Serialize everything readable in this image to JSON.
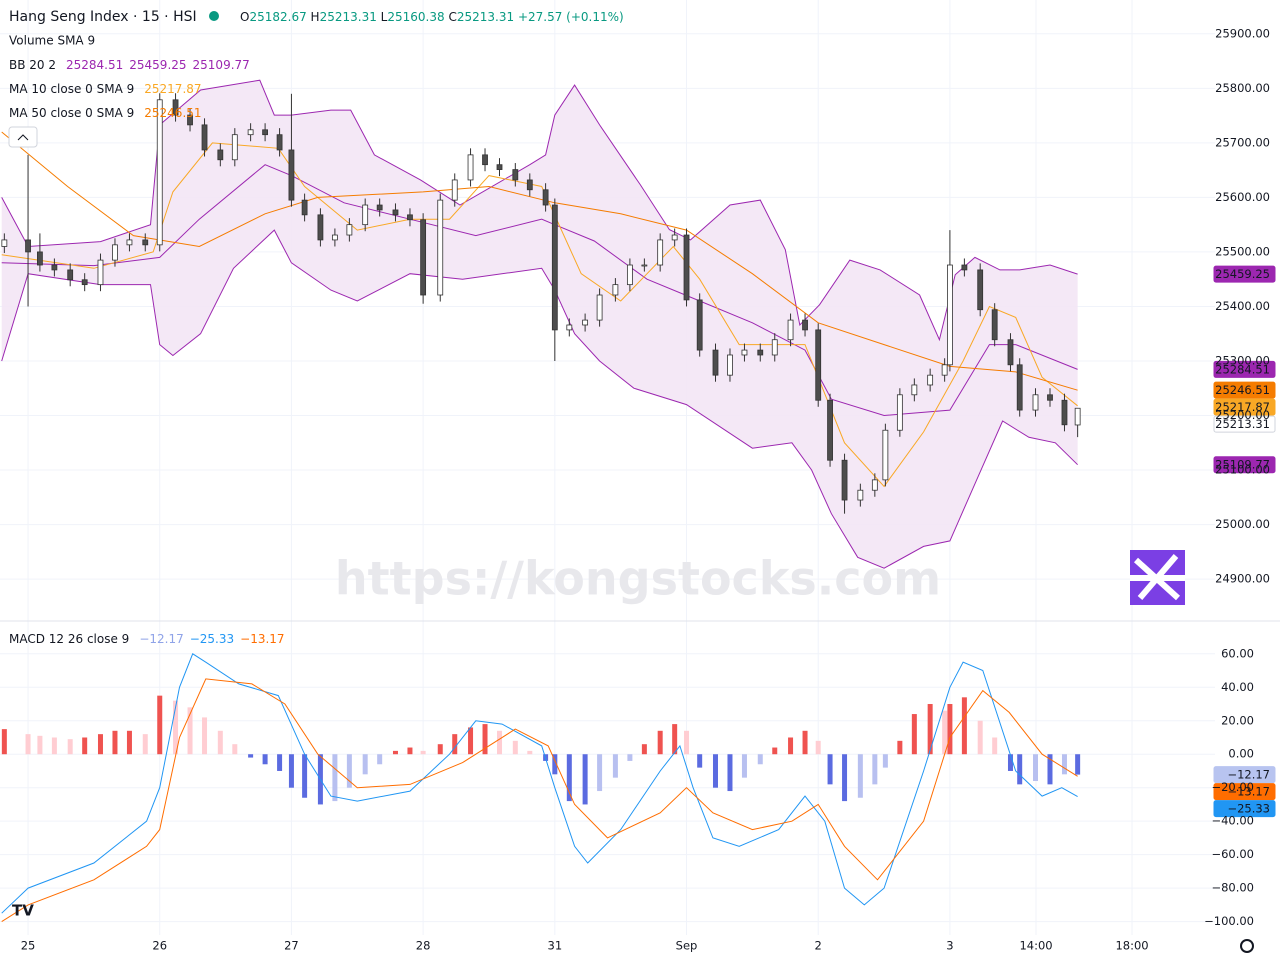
{
  "chart_data": [
    {
      "type": "candlestick",
      "title": "Hang Seng Index · 15 · HSI",
      "ohlc_labels": [
        "O",
        "H",
        "L",
        "C"
      ],
      "change": "+27.57 (+0.11%)",
      "volume_label": "Volume SMA 9",
      "watermark": "https://kongstocks.com",
      "ylim": [
        24825,
        25962
      ],
      "yticks": [
        {
          "value": 24900,
          "label": "24900.00"
        },
        {
          "value": 25000,
          "label": "25000.00"
        },
        {
          "value": 25100,
          "label": "25100.00"
        },
        {
          "value": 25200,
          "label": "25200.00"
        },
        {
          "value": 25300,
          "label": "25300.00"
        },
        {
          "value": 25400,
          "label": "25400.00"
        },
        {
          "value": 25500,
          "label": "25500.00"
        },
        {
          "value": 25600,
          "label": "25600.00"
        },
        {
          "value": 25700,
          "label": "25700.00"
        },
        {
          "value": 25800,
          "label": "25800.00"
        },
        {
          "value": 25900,
          "label": "25900.00"
        }
      ],
      "colors": {
        "up": "#ffffff",
        "down": "#4d4d4d",
        "wick": "#333333"
      },
      "x": [
        -0.18,
        0,
        0.09,
        0.2,
        0.32,
        0.43,
        0.55,
        0.66,
        0.77,
        0.89,
        1,
        1.12,
        1.23,
        1.34,
        1.46,
        1.57,
        1.69,
        1.8,
        1.91,
        2,
        2.1,
        2.22,
        2.33,
        2.44,
        2.56,
        2.67,
        2.79,
        2.9,
        3,
        3.13,
        3.24,
        3.36,
        3.47,
        3.58,
        3.7,
        3.81,
        3.93,
        4,
        4.11,
        4.23,
        4.34,
        4.46,
        4.57,
        4.68,
        4.8,
        4.91,
        5,
        5.1,
        5.22,
        5.33,
        5.44,
        5.56,
        5.67,
        5.79,
        5.9,
        6,
        6.09,
        6.2,
        6.32,
        6.43,
        6.51,
        6.62,
        6.73,
        6.85,
        6.96,
        7,
        7.11,
        7.23,
        7.34,
        7.46,
        7.53,
        7.65,
        7.76,
        7.87,
        7.97
      ],
      "open": [
        25510,
        25522,
        25500,
        25476,
        25467,
        25449,
        25440,
        25485,
        25513,
        25522,
        25513,
        25779,
        25751,
        25733,
        25687,
        25669,
        25715,
        25724,
        25715,
        25687,
        25595,
        25568,
        25522,
        25531,
        25550,
        25586,
        25577,
        25568,
        25559,
        25421,
        25595,
        25632,
        25678,
        25660,
        25651,
        25632,
        25614,
        25586,
        25357,
        25366,
        25375,
        25421,
        25440,
        25476,
        25476,
        25522,
        25531,
        25412,
        25320,
        25274,
        25311,
        25320,
        25311,
        25339,
        25375,
        25357,
        25228,
        25118,
        25045,
        25063,
        25082,
        25173,
        25238,
        25256,
        25274,
        25293,
        25476,
        25467,
        25394,
        25339,
        25293,
        25210,
        25238,
        25228,
        25182.67
      ],
      "high": [
        25534,
        25678,
        25534,
        25488,
        25479,
        25461,
        25497,
        25525,
        25534,
        25534,
        25791,
        25791,
        25763,
        25745,
        25699,
        25727,
        25736,
        25736,
        25727,
        25790,
        25607,
        25580,
        25543,
        25562,
        25598,
        25598,
        25589,
        25580,
        25571,
        25607,
        25644,
        25690,
        25690,
        25672,
        25663,
        25644,
        25626,
        25598,
        25378,
        25387,
        25433,
        25452,
        25488,
        25488,
        25534,
        25543,
        25543,
        25424,
        25332,
        25323,
        25332,
        25332,
        25351,
        25387,
        25387,
        25369,
        25240,
        25130,
        25075,
        25094,
        25185,
        25250,
        25268,
        25286,
        25305,
        25540,
        25488,
        25479,
        25406,
        25351,
        25305,
        25250,
        25250,
        25240,
        25213.31
      ],
      "low": [
        25498,
        25400,
        25464,
        25455,
        25437,
        25428,
        25428,
        25473,
        25501,
        25501,
        25501,
        25739,
        25721,
        25675,
        25657,
        25657,
        25703,
        25703,
        25675,
        25583,
        25556,
        25510,
        25510,
        25519,
        25538,
        25565,
        25556,
        25547,
        25405,
        25409,
        25583,
        25620,
        25648,
        25639,
        25620,
        25602,
        25574,
        25300,
        25345,
        25354,
        25363,
        25409,
        25428,
        25464,
        25464,
        25510,
        25400,
        25308,
        25262,
        25262,
        25299,
        25299,
        25299,
        25327,
        25345,
        25216,
        25106,
        25020,
        25033,
        25051,
        25070,
        25161,
        25226,
        25244,
        25262,
        25281,
        25455,
        25382,
        25327,
        25281,
        25198,
        25198,
        25216,
        25171,
        25160.38
      ],
      "close": [
        25522,
        25500,
        25476,
        25467,
        25449,
        25440,
        25485,
        25513,
        25522,
        25513,
        25779,
        25751,
        25733,
        25687,
        25669,
        25715,
        25724,
        25715,
        25687,
        25595,
        25568,
        25522,
        25531,
        25550,
        25586,
        25577,
        25568,
        25559,
        25421,
        25595,
        25632,
        25678,
        25660,
        25651,
        25632,
        25614,
        25586,
        25357,
        25366,
        25375,
        25421,
        25440,
        25476,
        25476,
        25522,
        25531,
        25412,
        25320,
        25274,
        25311,
        25320,
        25311,
        25339,
        25375,
        25357,
        25228,
        25118,
        25045,
        25063,
        25082,
        25173,
        25238,
        25256,
        25274,
        25293,
        25476,
        25467,
        25394,
        25339,
        25293,
        25210,
        25238,
        25228,
        25183,
        25213.31
      ],
      "bollinger": {
        "name": "BB 20 2",
        "color": "#9c27b0",
        "fill": "#f3e5f5",
        "basis": {
          "x": [
            -0.2,
            0.5,
            1,
            1.3,
            1.8,
            2,
            2.4,
            2.9,
            3.4,
            3.9,
            4,
            4.3,
            4.7,
            5,
            5.5,
            5.9,
            6.1,
            6.5,
            7,
            7.3,
            7.5,
            7.97
          ],
          "values": [
            25480,
            25475,
            25490,
            25560,
            25660,
            25640,
            25590,
            25560,
            25530,
            25560,
            25550,
            25520,
            25450,
            25420,
            25370,
            25320,
            25230,
            25200,
            25210,
            25330,
            25330,
            25284.51
          ]
        },
        "upper": {
          "x": [
            -0.2,
            0,
            0.55,
            0.93,
            1,
            1.31,
            1.76,
            1.87,
            2,
            2.3,
            2.45,
            2.63,
            2.98,
            3.28,
            3.81,
            3.93,
            4,
            4.15,
            4.34,
            4.65,
            4.87,
            5.03,
            5.33,
            5.56,
            5.75,
            5.86,
            6.01,
            6.24,
            6.47,
            6.77,
            6.92,
            7.04,
            7.19,
            7.38,
            7.53,
            7.76,
            7.97
          ],
          "values": [
            25600,
            25510,
            25519,
            25550,
            25733,
            25797,
            25815,
            25751,
            25751,
            25760,
            25760,
            25678,
            25632,
            25586,
            25660,
            25678,
            25751,
            25806,
            25733,
            25623,
            25541,
            25522,
            25586,
            25595,
            25504,
            25366,
            25403,
            25485,
            25467,
            25421,
            25339,
            25458,
            25490,
            25467,
            25467,
            25476,
            25459.25
          ]
        },
        "lower": {
          "x": [
            -0.2,
            0,
            0.55,
            0.93,
            1,
            1.1,
            1.31,
            1.56,
            1.87,
            2,
            2.3,
            2.5,
            2.9,
            3.3,
            3.9,
            4,
            4.15,
            4.34,
            4.6,
            5,
            5.5,
            5.8,
            5.95,
            6.1,
            6.3,
            6.5,
            6.8,
            7,
            7.2,
            7.4,
            7.6,
            7.8,
            7.97
          ],
          "values": [
            25300,
            25460,
            25440,
            25440,
            25330,
            25310,
            25350,
            25470,
            25540,
            25480,
            25430,
            25410,
            25460,
            25450,
            25470,
            25430,
            25350,
            25300,
            25250,
            25220,
            25140,
            25150,
            25100,
            25020,
            24940,
            24920,
            24960,
            24970,
            25080,
            25190,
            25160,
            25150,
            25109.77
          ]
        }
      },
      "moving_averages": [
        {
          "name": "MA 10 close 0 SMA 9",
          "color": "#f9a825",
          "x": [
            -0.2,
            0.5,
            0.95,
            1.1,
            1.4,
            1.9,
            2.1,
            2.5,
            2.9,
            3.2,
            3.5,
            3.9,
            4.2,
            4.5,
            4.9,
            5.1,
            5.4,
            5.9,
            6.2,
            6.5,
            6.8,
            7.1,
            7.3,
            7.5,
            7.7,
            7.97
          ],
          "values": [
            25495,
            25470,
            25500,
            25610,
            25700,
            25690,
            25620,
            25540,
            25560,
            25560,
            25640,
            25620,
            25460,
            25410,
            25510,
            25450,
            25330,
            25330,
            25150,
            25070,
            25170,
            25300,
            25400,
            25380,
            25270,
            25217.87
          ]
        },
        {
          "name": "MA 50 close 0 SMA 9",
          "color": "#f57c00",
          "x": [
            -0.2,
            0.3,
            0.8,
            1.3,
            1.8,
            2.2,
            3,
            3.5,
            4,
            4.5,
            5,
            5.5,
            6,
            6.5,
            7,
            7.5,
            7.97
          ],
          "values": [
            25720,
            25620,
            25530,
            25510,
            25570,
            25600,
            25610,
            25620,
            25590,
            25570,
            25540,
            25460,
            25370,
            25330,
            25290,
            25280,
            25246.51
          ]
        }
      ]
    },
    {
      "type": "macd",
      "name": "MACD 12 26 close 9",
      "ylim": [
        -108,
        79
      ],
      "yticks": [
        {
          "value": 60,
          "label": "60.00"
        },
        {
          "value": 40,
          "label": "40.00"
        },
        {
          "value": 20,
          "label": "20.00"
        },
        {
          "value": 0,
          "label": "0.00"
        },
        {
          "value": -20,
          "label": "−20.00"
        },
        {
          "value": -40,
          "label": "−40.00"
        },
        {
          "value": -60,
          "label": "−60.00"
        },
        {
          "value": -80,
          "label": "−80.00"
        },
        {
          "value": -100,
          "label": "−100.00"
        }
      ],
      "xlim": [
        -0.213,
        9.013
      ],
      "xticks": [
        {
          "value": 0,
          "label": "25"
        },
        {
          "value": 1,
          "label": "26"
        },
        {
          "value": 2,
          "label": "27"
        },
        {
          "value": 3,
          "label": "28"
        },
        {
          "value": 4,
          "label": "31"
        },
        {
          "value": 5,
          "label": "Sep"
        },
        {
          "value": 6,
          "label": "2"
        },
        {
          "value": 7,
          "label": "3"
        },
        {
          "value": 7.654,
          "label": "14:00"
        },
        {
          "value": 8.383,
          "label": "18:00"
        }
      ],
      "histogram": {
        "colors": {
          "up_strong": "#ef5350",
          "up_weak": "#ffcdd2",
          "down_strong": "#5b6be0",
          "down_weak": "#b8c0f0"
        },
        "tag_color": "#b8c4f0",
        "values": [
          15,
          12,
          11,
          10,
          9,
          10,
          12,
          14,
          14,
          12,
          35,
          32,
          28,
          22,
          14,
          6,
          -2,
          -6,
          -10,
          -20,
          -26,
          -30,
          -28,
          -20,
          -12,
          -6,
          2,
          4,
          2,
          6,
          12,
          16,
          18,
          14,
          8,
          2,
          -4,
          -12,
          -28,
          -30,
          -22,
          -14,
          -4,
          6,
          14,
          18,
          14,
          -8,
          -20,
          -22,
          -14,
          -6,
          4,
          10,
          14,
          8,
          -18,
          -28,
          -26,
          -18,
          -8,
          8,
          24,
          30,
          26,
          30,
          34,
          20,
          10,
          -10,
          -18,
          -16,
          -18,
          -12,
          -12.17
        ],
        "last_value_label": "−12.17"
      },
      "macd": {
        "color": "#2196f3",
        "x": [
          -0.2,
          0,
          0.5,
          0.9,
          1,
          1.15,
          1.25,
          1.35,
          1.6,
          1.9,
          2.1,
          2.3,
          2.5,
          2.9,
          3.2,
          3.4,
          3.6,
          3.9,
          4,
          4.15,
          4.25,
          4.5,
          4.8,
          4.95,
          5.05,
          5.2,
          5.4,
          5.7,
          5.9,
          6.05,
          6.2,
          6.35,
          6.5,
          6.8,
          7,
          7.1,
          7.25,
          7.5,
          7.7,
          7.85,
          7.97
        ],
        "values": [
          -95,
          -80,
          -65,
          -40,
          -20,
          40,
          60,
          55,
          42,
          35,
          0,
          -25,
          -28,
          -22,
          0,
          20,
          18,
          5,
          -20,
          -55,
          -65,
          -45,
          -10,
          5,
          -20,
          -50,
          -55,
          -45,
          -25,
          -40,
          -80,
          -90,
          -80,
          -10,
          40,
          55,
          50,
          -10,
          -25,
          -20,
          -25.33
        ],
        "last_value_label": "−25.33"
      },
      "signal": {
        "color": "#ff6d00",
        "x": [
          -0.2,
          0,
          0.5,
          0.9,
          1,
          1.15,
          1.35,
          1.7,
          1.95,
          2.2,
          2.5,
          2.9,
          3.3,
          3.7,
          3.95,
          4.15,
          4.4,
          4.8,
          5,
          5.2,
          5.5,
          5.8,
          6,
          6.2,
          6.45,
          6.8,
          7,
          7.25,
          7.45,
          7.7,
          7.97
        ],
        "values": [
          -100,
          -90,
          -75,
          -55,
          -45,
          10,
          45,
          42,
          30,
          0,
          -20,
          -18,
          -5,
          15,
          5,
          -30,
          -50,
          -35,
          -20,
          -35,
          -45,
          -40,
          -30,
          -55,
          -75,
          -40,
          10,
          38,
          25,
          0,
          -13.17
        ],
        "last_value_label": "−13.17"
      }
    }
  ]
}
